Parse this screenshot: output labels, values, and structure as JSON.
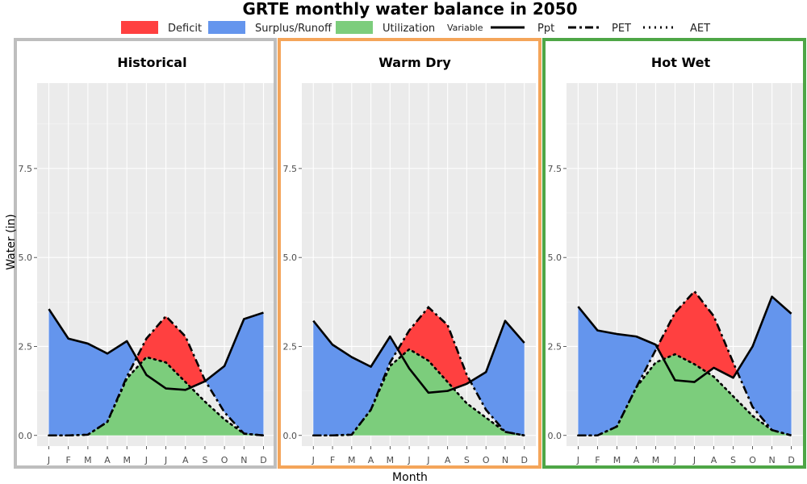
{
  "chart_data": {
    "type": "area",
    "title": "GRTE monthly water balance in 2050",
    "xlabel": "Month",
    "ylabel": "Water (in)",
    "ylim": [
      -0.3,
      9.9
    ],
    "yticks": [
      0.0,
      2.5,
      5.0,
      7.5
    ],
    "ytick_labels": [
      "0.0",
      "2.5",
      "5.0",
      "7.5"
    ],
    "categories": [
      "J",
      "F",
      "M",
      "A",
      "M",
      "J",
      "J",
      "A",
      "S",
      "O",
      "N",
      "D"
    ],
    "legend": {
      "fill_items": [
        {
          "label": "Deficit",
          "color": "#ff4040"
        },
        {
          "label": "Surplus/Runoff",
          "color": "#6495ed"
        },
        {
          "label": "Utilization",
          "color": "#7ccd7c"
        }
      ],
      "variable_title": "Variable",
      "line_items": [
        {
          "label": "Ppt",
          "style": "solid"
        },
        {
          "label": "PET",
          "style": "dashdot"
        },
        {
          "label": "AET",
          "style": "dotted"
        }
      ],
      "placement": "top"
    },
    "grid": true,
    "panels": [
      {
        "title": "Historical",
        "border_color": "#bebebe",
        "series": [
          {
            "name": "Ppt",
            "values": [
              3.55,
              2.72,
              2.58,
              2.3,
              2.65,
              1.7,
              1.32,
              1.28,
              1.52,
              1.95,
              3.27,
              3.45
            ]
          },
          {
            "name": "PET",
            "values": [
              0.0,
              0.0,
              0.02,
              0.38,
              1.65,
              2.72,
              3.35,
              2.78,
              1.55,
              0.65,
              0.05,
              0.0
            ]
          },
          {
            "name": "AET",
            "values": [
              0.0,
              0.0,
              0.02,
              0.38,
              1.6,
              2.2,
              2.05,
              1.5,
              0.95,
              0.45,
              0.05,
              0.0
            ]
          }
        ]
      },
      {
        "title": "Warm Dry",
        "border_color": "#f4a55a",
        "series": [
          {
            "name": "Ppt",
            "values": [
              3.22,
              2.55,
              2.2,
              1.93,
              2.78,
              1.88,
              1.2,
              1.25,
              1.45,
              1.78,
              3.22,
              2.6
            ]
          },
          {
            "name": "PET",
            "values": [
              0.0,
              0.0,
              0.02,
              0.72,
              2.05,
              2.95,
              3.6,
              3.1,
              1.7,
              0.72,
              0.1,
              0.0
            ]
          },
          {
            "name": "AET",
            "values": [
              0.0,
              0.0,
              0.02,
              0.72,
              1.95,
              2.42,
              2.1,
              1.5,
              0.9,
              0.5,
              0.1,
              0.0
            ]
          }
        ]
      },
      {
        "title": "Hot Wet",
        "border_color": "#4ea646",
        "series": [
          {
            "name": "Ppt",
            "values": [
              3.62,
              2.95,
              2.85,
              2.78,
              2.55,
              1.55,
              1.5,
              1.9,
              1.62,
              2.5,
              3.9,
              3.42
            ]
          },
          {
            "name": "PET",
            "values": [
              0.0,
              0.0,
              0.25,
              1.35,
              2.4,
              3.45,
              4.05,
              3.35,
              2.05,
              0.8,
              0.15,
              0.0
            ]
          },
          {
            "name": "AET",
            "values": [
              0.0,
              0.0,
              0.25,
              1.35,
              2.05,
              2.28,
              2.0,
              1.65,
              1.1,
              0.55,
              0.15,
              0.0
            ]
          }
        ]
      }
    ]
  }
}
